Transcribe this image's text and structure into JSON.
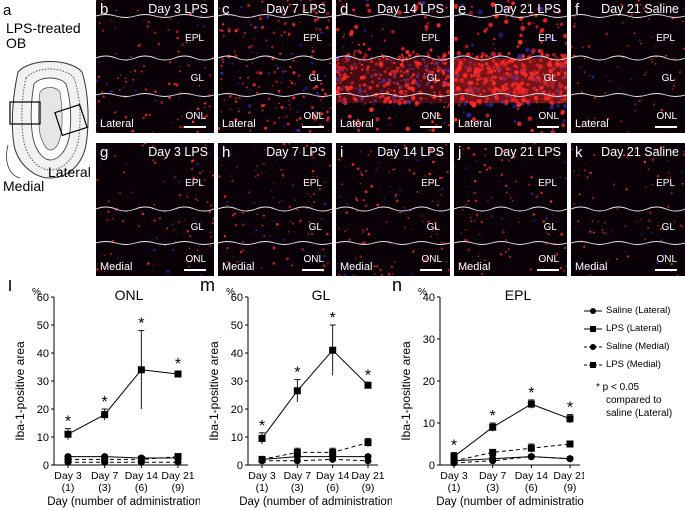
{
  "schematic": {
    "letter": "a",
    "title_line1": "LPS-treated",
    "title_line2": "OB",
    "label_lateral": "Lateral",
    "label_medial": "Medial"
  },
  "micrographs": [
    {
      "letter": "b",
      "title": "Day 3 LPS",
      "region": "Lateral",
      "epl": "EPL",
      "gl": "GL",
      "onl": "ONL",
      "density": 0.12
    },
    {
      "letter": "c",
      "title": "Day 7 LPS",
      "region": "Lateral",
      "epl": "EPL",
      "gl": "GL",
      "onl": "ONL",
      "density": 0.35
    },
    {
      "letter": "d",
      "title": "Day 14 LPS",
      "region": "Lateral",
      "epl": "EPL",
      "gl": "GL",
      "onl": "ONL",
      "density": 0.8
    },
    {
      "letter": "e",
      "title": "Day 21 LPS",
      "region": "Lateral",
      "epl": "EPL",
      "gl": "GL",
      "onl": "ONL",
      "density": 1.0
    },
    {
      "letter": "f",
      "title": "Day 21 Saline",
      "region": "Lateral",
      "epl": "EPL",
      "gl": "GL",
      "onl": "ONL",
      "density": 0.05
    },
    {
      "letter": "g",
      "title": "Day 3 LPS",
      "region": "Medial",
      "epl": "EPL",
      "gl": "GL",
      "onl": "ONL",
      "density": 0.08
    },
    {
      "letter": "h",
      "title": "Day 7 LPS",
      "region": "Medial",
      "epl": "EPL",
      "gl": "GL",
      "onl": "ONL",
      "density": 0.12
    },
    {
      "letter": "i",
      "title": "Day 14 LPS",
      "region": "Medial",
      "epl": "EPL",
      "gl": "GL",
      "onl": "ONL",
      "density": 0.14
    },
    {
      "letter": "j",
      "title": "Day 21 LPS",
      "region": "Medial",
      "epl": "EPL",
      "gl": "GL",
      "onl": "ONL",
      "density": 0.1
    },
    {
      "letter": "k",
      "title": "Day 21 Saline",
      "region": "Medial",
      "epl": "EPL",
      "gl": "GL",
      "onl": "ONL",
      "density": 0.05
    }
  ],
  "chart_data": [
    {
      "type": "line",
      "panel": "l",
      "title": "ONL",
      "ylabel": "Iba-1-positive area",
      "yunit": "%",
      "xlabel": "Day (number of administrations)",
      "categories": [
        "Day 3",
        "Day 7",
        "Day 14",
        "Day 21"
      ],
      "subcategories": [
        "(1)",
        "(3)",
        "(6)",
        "(9)"
      ],
      "ylim": [
        0,
        60
      ],
      "yticks": [
        0,
        10,
        20,
        30,
        40,
        50,
        60
      ],
      "series": [
        {
          "name": "Saline (Lateral)",
          "values": [
            3,
            3,
            2.5,
            2.5
          ],
          "err": [
            0.5,
            0.5,
            0.5,
            0.5
          ]
        },
        {
          "name": "LPS (Lateral)",
          "values": [
            11,
            18,
            34,
            32.5
          ],
          "err": [
            2,
            2,
            14,
            1
          ],
          "sig": [
            true,
            true,
            true,
            true
          ]
        },
        {
          "name": "Saline (Medial)",
          "values": [
            1,
            1,
            1,
            1
          ],
          "err": [
            0.5,
            0.5,
            0.5,
            0.5
          ]
        },
        {
          "name": "LPS (Medial)",
          "values": [
            2,
            2,
            2,
            3
          ],
          "err": [
            1,
            1,
            1,
            1
          ]
        }
      ]
    },
    {
      "type": "line",
      "panel": "m",
      "title": "GL",
      "ylabel": "Iba-1-positive area",
      "yunit": "%",
      "xlabel": "Day (number of administrations)",
      "categories": [
        "Day 3",
        "Day 7",
        "Day 14",
        "Day 21"
      ],
      "subcategories": [
        "(1)",
        "(3)",
        "(6)",
        "(9)"
      ],
      "ylim": [
        0,
        60
      ],
      "yticks": [
        0,
        10,
        20,
        30,
        40,
        50,
        60
      ],
      "series": [
        {
          "name": "Saline (Lateral)",
          "values": [
            2,
            3,
            3,
            3
          ],
          "err": [
            0.5,
            0.5,
            0.5,
            0.5
          ]
        },
        {
          "name": "LPS (Lateral)",
          "values": [
            9.5,
            26.5,
            41,
            28.5
          ],
          "err": [
            2,
            4,
            9,
            1
          ],
          "sig": [
            true,
            true,
            true,
            true
          ]
        },
        {
          "name": "Saline (Medial)",
          "values": [
            1.5,
            1.5,
            2,
            1.5
          ],
          "err": [
            0.5,
            0.5,
            0.5,
            0.5
          ]
        },
        {
          "name": "LPS (Medial)",
          "values": [
            2,
            4.5,
            4.5,
            8
          ],
          "err": [
            1,
            1.5,
            1.5,
            1.5
          ]
        }
      ]
    },
    {
      "type": "line",
      "panel": "n",
      "title": "EPL",
      "ylabel": "Iba-1-positive area",
      "yunit": "%",
      "xlabel": "Day (number of administrations)",
      "categories": [
        "Day 3",
        "Day 7",
        "Day 14",
        "Day 21"
      ],
      "subcategories": [
        "(1)",
        "(3)",
        "(6)",
        "(9)"
      ],
      "ylim": [
        0,
        40
      ],
      "yticks": [
        0,
        10,
        20,
        30,
        40
      ],
      "series": [
        {
          "name": "Saline (Lateral)",
          "values": [
            1,
            1.5,
            2,
            1.5
          ],
          "err": [
            0.5,
            0.5,
            0.5,
            0.5
          ]
        },
        {
          "name": "LPS (Lateral)",
          "values": [
            2,
            9,
            14.5,
            11
          ],
          "err": [
            1,
            1,
            1,
            1
          ],
          "sig": [
            true,
            true,
            true,
            true
          ]
        },
        {
          "name": "Saline (Medial)",
          "values": [
            0.5,
            1,
            2,
            1.5
          ],
          "err": [
            0.3,
            0.3,
            0.3,
            0.3
          ]
        },
        {
          "name": "LPS (Medial)",
          "values": [
            1,
            3,
            4,
            5
          ],
          "err": [
            0.5,
            0.5,
            1,
            0.5
          ]
        }
      ]
    }
  ],
  "legend": {
    "items": [
      "Saline (Lateral)",
      "LPS (Lateral)",
      "Saline (Medial)",
      "LPS (Medial)"
    ],
    "note_star": "* p < 0.05",
    "note_line2": "compared to",
    "note_line3": "saline (Lateral)"
  },
  "colors": {
    "stain": "#ff2a2a",
    "nuclei": "#2a2aa8",
    "background": "#0a0008"
  }
}
